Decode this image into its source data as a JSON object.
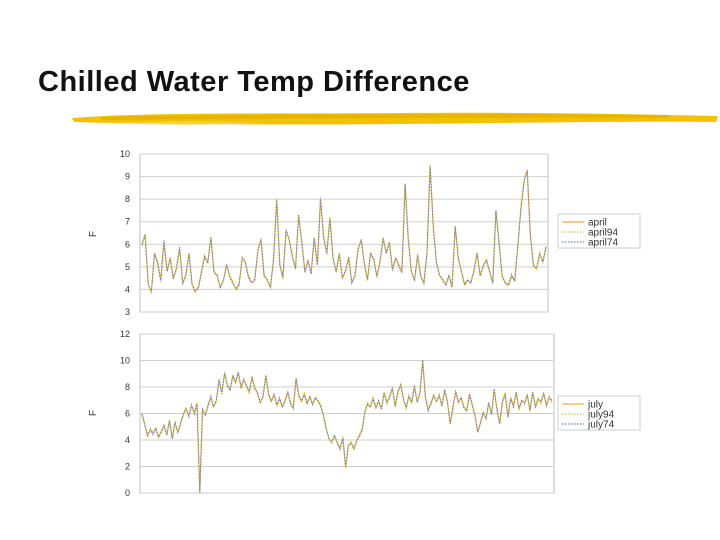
{
  "slide": {
    "title": "Chilled Water Temp Difference",
    "accent_color": "#f2c200"
  },
  "chart_data": [
    {
      "type": "line",
      "title": "",
      "xlabel": "",
      "ylabel": "F",
      "ylim": [
        3,
        10
      ],
      "yticks": [
        3,
        4,
        5,
        6,
        7,
        8,
        9,
        10
      ],
      "legend": "right",
      "n_points": 130,
      "series": [
        {
          "name": "april",
          "color": "#e8b24a",
          "style": "solid"
        },
        {
          "name": "april94",
          "color": "#c9c64c",
          "style": "dotted"
        },
        {
          "name": "april74",
          "color": "#6f7fb8",
          "style": "dotted"
        }
      ],
      "keyframes": [
        [
          0,
          6
        ],
        [
          1,
          6.4
        ],
        [
          2,
          4.2
        ],
        [
          3,
          3.9
        ],
        [
          4,
          5.6
        ],
        [
          5,
          5.2
        ],
        [
          6,
          4.4
        ],
        [
          7,
          6.1
        ],
        [
          8,
          4.8
        ],
        [
          9,
          5.4
        ],
        [
          10,
          4.5
        ],
        [
          11,
          4.9
        ],
        [
          12,
          5.8
        ],
        [
          13,
          4.3
        ],
        [
          14,
          4.6
        ],
        [
          15,
          5.6
        ],
        [
          16,
          4.2
        ],
        [
          17,
          3.9
        ],
        [
          18,
          4.1
        ],
        [
          19,
          4.8
        ],
        [
          20,
          5.5
        ],
        [
          21,
          5.2
        ],
        [
          22,
          6.3
        ],
        [
          23,
          4.8
        ],
        [
          24,
          4.6
        ],
        [
          25,
          4.1
        ],
        [
          26,
          4.4
        ],
        [
          27,
          5.1
        ],
        [
          28,
          4.6
        ],
        [
          29,
          4.3
        ],
        [
          30,
          4
        ],
        [
          31,
          4.2
        ],
        [
          32,
          5.4
        ],
        [
          33,
          5.2
        ],
        [
          34,
          4.6
        ],
        [
          35,
          4.3
        ],
        [
          36,
          4.4
        ],
        [
          37,
          5.7
        ],
        [
          38,
          6.2
        ],
        [
          39,
          4.6
        ],
        [
          40,
          4.4
        ],
        [
          41,
          4.1
        ],
        [
          42,
          5.3
        ],
        [
          43,
          8
        ],
        [
          44,
          5.1
        ],
        [
          45,
          4.5
        ],
        [
          46,
          6.6
        ],
        [
          47,
          6.2
        ],
        [
          48,
          5.5
        ],
        [
          49,
          4.9
        ],
        [
          50,
          7.3
        ],
        [
          51,
          6.1
        ],
        [
          52,
          4.8
        ],
        [
          53,
          5.3
        ],
        [
          54,
          4.7
        ],
        [
          55,
          6.3
        ],
        [
          56,
          5.1
        ],
        [
          57,
          8
        ],
        [
          58,
          6.3
        ],
        [
          59,
          5.6
        ],
        [
          60,
          7.2
        ],
        [
          61,
          5.4
        ],
        [
          62,
          4.8
        ],
        [
          63,
          5.6
        ],
        [
          64,
          4.5
        ],
        [
          65,
          4.8
        ],
        [
          66,
          5.4
        ],
        [
          67,
          4.3
        ],
        [
          68,
          4.6
        ],
        [
          69,
          5.8
        ],
        [
          70,
          6.2
        ],
        [
          71,
          5.1
        ],
        [
          72,
          4.4
        ],
        [
          73,
          5.6
        ],
        [
          74,
          5.3
        ],
        [
          75,
          4.6
        ],
        [
          76,
          5.2
        ],
        [
          77,
          6.3
        ],
        [
          78,
          5.6
        ],
        [
          79,
          6.1
        ],
        [
          80,
          4.9
        ],
        [
          81,
          5.4
        ],
        [
          82,
          5.1
        ],
        [
          83,
          4.8
        ],
        [
          84,
          8.7
        ],
        [
          85,
          6.3
        ],
        [
          86,
          4.8
        ],
        [
          87,
          4.4
        ],
        [
          88,
          5.5
        ],
        [
          89,
          4.6
        ],
        [
          90,
          4.3
        ],
        [
          91,
          5.6
        ],
        [
          92,
          9.5
        ],
        [
          93,
          6.8
        ],
        [
          94,
          5.2
        ],
        [
          95,
          4.6
        ],
        [
          96,
          4.4
        ],
        [
          97,
          4.2
        ],
        [
          98,
          4.6
        ],
        [
          99,
          4.1
        ],
        [
          100,
          6.8
        ],
        [
          101,
          5.4
        ],
        [
          102,
          4.8
        ],
        [
          103,
          4.2
        ],
        [
          104,
          4.4
        ],
        [
          105,
          4.3
        ],
        [
          106,
          4.8
        ],
        [
          107,
          5.6
        ],
        [
          108,
          4.6
        ],
        [
          109,
          5.1
        ],
        [
          110,
          5.3
        ],
        [
          111,
          4.8
        ],
        [
          112,
          4.3
        ],
        [
          113,
          7.5
        ],
        [
          114,
          6.1
        ],
        [
          115,
          4.6
        ],
        [
          116,
          4.3
        ],
        [
          117,
          4.2
        ],
        [
          118,
          4.6
        ],
        [
          119,
          4.4
        ],
        [
          120,
          5.9
        ],
        [
          121,
          7.6
        ],
        [
          122,
          8.8
        ],
        [
          123,
          9.3
        ],
        [
          124,
          6.4
        ],
        [
          125,
          5.1
        ],
        [
          126,
          4.9
        ],
        [
          127,
          5.6
        ],
        [
          128,
          5.2
        ],
        [
          129,
          5.9
        ]
      ]
    },
    {
      "type": "line",
      "title": "",
      "xlabel": "",
      "ylabel": "F",
      "ylim": [
        0,
        12
      ],
      "yticks": [
        0,
        2,
        4,
        6,
        8,
        10,
        12
      ],
      "legend": "right",
      "n_points": 150,
      "series": [
        {
          "name": "july",
          "color": "#e8b24a",
          "style": "solid"
        },
        {
          "name": "july94",
          "color": "#c9c64c",
          "style": "dotted"
        },
        {
          "name": "july74",
          "color": "#6f7fb8",
          "style": "dotted"
        }
      ],
      "keyframes": [
        [
          0,
          6
        ],
        [
          1,
          5.2
        ],
        [
          2,
          4.3
        ],
        [
          3,
          4.8
        ],
        [
          4,
          4.5
        ],
        [
          5,
          4.9
        ],
        [
          6,
          4.2
        ],
        [
          7,
          4.7
        ],
        [
          8,
          5.1
        ],
        [
          9,
          4.4
        ],
        [
          10,
          5.5
        ],
        [
          11,
          4.1
        ],
        [
          12,
          5.3
        ],
        [
          13,
          4.6
        ],
        [
          14,
          5.2
        ],
        [
          15,
          5.9
        ],
        [
          16,
          6.4
        ],
        [
          17,
          5.8
        ],
        [
          18,
          6.6
        ],
        [
          19,
          6.1
        ],
        [
          20,
          6.8
        ],
        [
          21,
          0
        ],
        [
          22,
          6.3
        ],
        [
          23,
          5.9
        ],
        [
          24,
          6.6
        ],
        [
          25,
          7.2
        ],
        [
          26,
          6.5
        ],
        [
          27,
          6.9
        ],
        [
          28,
          8.5
        ],
        [
          29,
          7.6
        ],
        [
          30,
          9
        ],
        [
          31,
          8.2
        ],
        [
          32,
          7.8
        ],
        [
          33,
          8.8
        ],
        [
          34,
          8.3
        ],
        [
          35,
          9.1
        ],
        [
          36,
          7.9
        ],
        [
          37,
          8.5
        ],
        [
          38,
          8.1
        ],
        [
          39,
          7.6
        ],
        [
          40,
          8.8
        ],
        [
          41,
          7.9
        ],
        [
          42,
          7.5
        ],
        [
          43,
          6.8
        ],
        [
          44,
          7.3
        ],
        [
          45,
          8.9
        ],
        [
          46,
          7.5
        ],
        [
          47,
          6.9
        ],
        [
          48,
          7.4
        ],
        [
          49,
          6.6
        ],
        [
          50,
          7.1
        ],
        [
          51,
          6.5
        ],
        [
          52,
          7
        ],
        [
          53,
          7.6
        ],
        [
          54,
          6.8
        ],
        [
          55,
          6.4
        ],
        [
          56,
          8.6
        ],
        [
          57,
          7.3
        ],
        [
          58,
          6.9
        ],
        [
          59,
          7.5
        ],
        [
          60,
          6.8
        ],
        [
          61,
          7.3
        ],
        [
          62,
          6.7
        ],
        [
          63,
          7.2
        ],
        [
          64,
          6.9
        ],
        [
          65,
          6.6
        ],
        [
          66,
          5.8
        ],
        [
          67,
          4.8
        ],
        [
          68,
          4.1
        ],
        [
          69,
          3.9
        ],
        [
          70,
          4.3
        ],
        [
          71,
          3.7
        ],
        [
          72,
          3.4
        ],
        [
          73,
          4.2
        ],
        [
          74,
          1.9
        ],
        [
          75,
          3.6
        ],
        [
          76,
          3.8
        ],
        [
          77,
          3.3
        ],
        [
          78,
          3.9
        ],
        [
          79,
          4.3
        ],
        [
          80,
          4.8
        ],
        [
          81,
          6.1
        ],
        [
          82,
          6.8
        ],
        [
          83,
          6.5
        ],
        [
          84,
          7.2
        ],
        [
          85,
          6.4
        ],
        [
          86,
          6.9
        ],
        [
          87,
          6.3
        ],
        [
          88,
          7.6
        ],
        [
          89,
          6.8
        ],
        [
          90,
          7.3
        ],
        [
          91,
          7.9
        ],
        [
          92,
          6.5
        ],
        [
          93,
          7.6
        ],
        [
          94,
          8.2
        ],
        [
          95,
          7.1
        ],
        [
          96,
          6.4
        ],
        [
          97,
          7.3
        ],
        [
          98,
          6.8
        ],
        [
          99,
          8
        ],
        [
          100,
          6.9
        ],
        [
          101,
          7.5
        ],
        [
          102,
          10
        ],
        [
          103,
          7.2
        ],
        [
          104,
          6.3
        ],
        [
          105,
          6.8
        ],
        [
          106,
          7.4
        ],
        [
          107,
          6.9
        ],
        [
          108,
          7.3
        ],
        [
          109,
          6.6
        ],
        [
          110,
          7.7
        ],
        [
          111,
          6.9
        ],
        [
          112,
          5.2
        ],
        [
          113,
          6.5
        ],
        [
          114,
          7.6
        ],
        [
          115,
          6.8
        ],
        [
          116,
          7.2
        ],
        [
          117,
          6.5
        ],
        [
          118,
          6.2
        ],
        [
          119,
          7.4
        ],
        [
          120,
          6.7
        ],
        [
          121,
          5.8
        ],
        [
          122,
          4.6
        ],
        [
          123,
          5.3
        ],
        [
          124,
          6.1
        ],
        [
          125,
          5.6
        ],
        [
          126,
          6.8
        ],
        [
          127,
          5.9
        ],
        [
          128,
          7.8
        ],
        [
          129,
          6.3
        ],
        [
          130,
          5.2
        ],
        [
          131,
          6.9
        ],
        [
          132,
          7.5
        ],
        [
          133,
          5.8
        ],
        [
          134,
          7.2
        ],
        [
          135,
          6.6
        ],
        [
          136,
          7.6
        ],
        [
          137,
          6.3
        ],
        [
          138,
          7
        ],
        [
          139,
          6.8
        ],
        [
          140,
          7.4
        ],
        [
          141,
          6.2
        ],
        [
          142,
          7.6
        ],
        [
          143,
          6.5
        ],
        [
          144,
          7.1
        ],
        [
          145,
          6.8
        ],
        [
          146,
          7.5
        ],
        [
          147,
          6.6
        ],
        [
          148,
          7.2
        ],
        [
          149,
          6.9
        ]
      ]
    }
  ]
}
